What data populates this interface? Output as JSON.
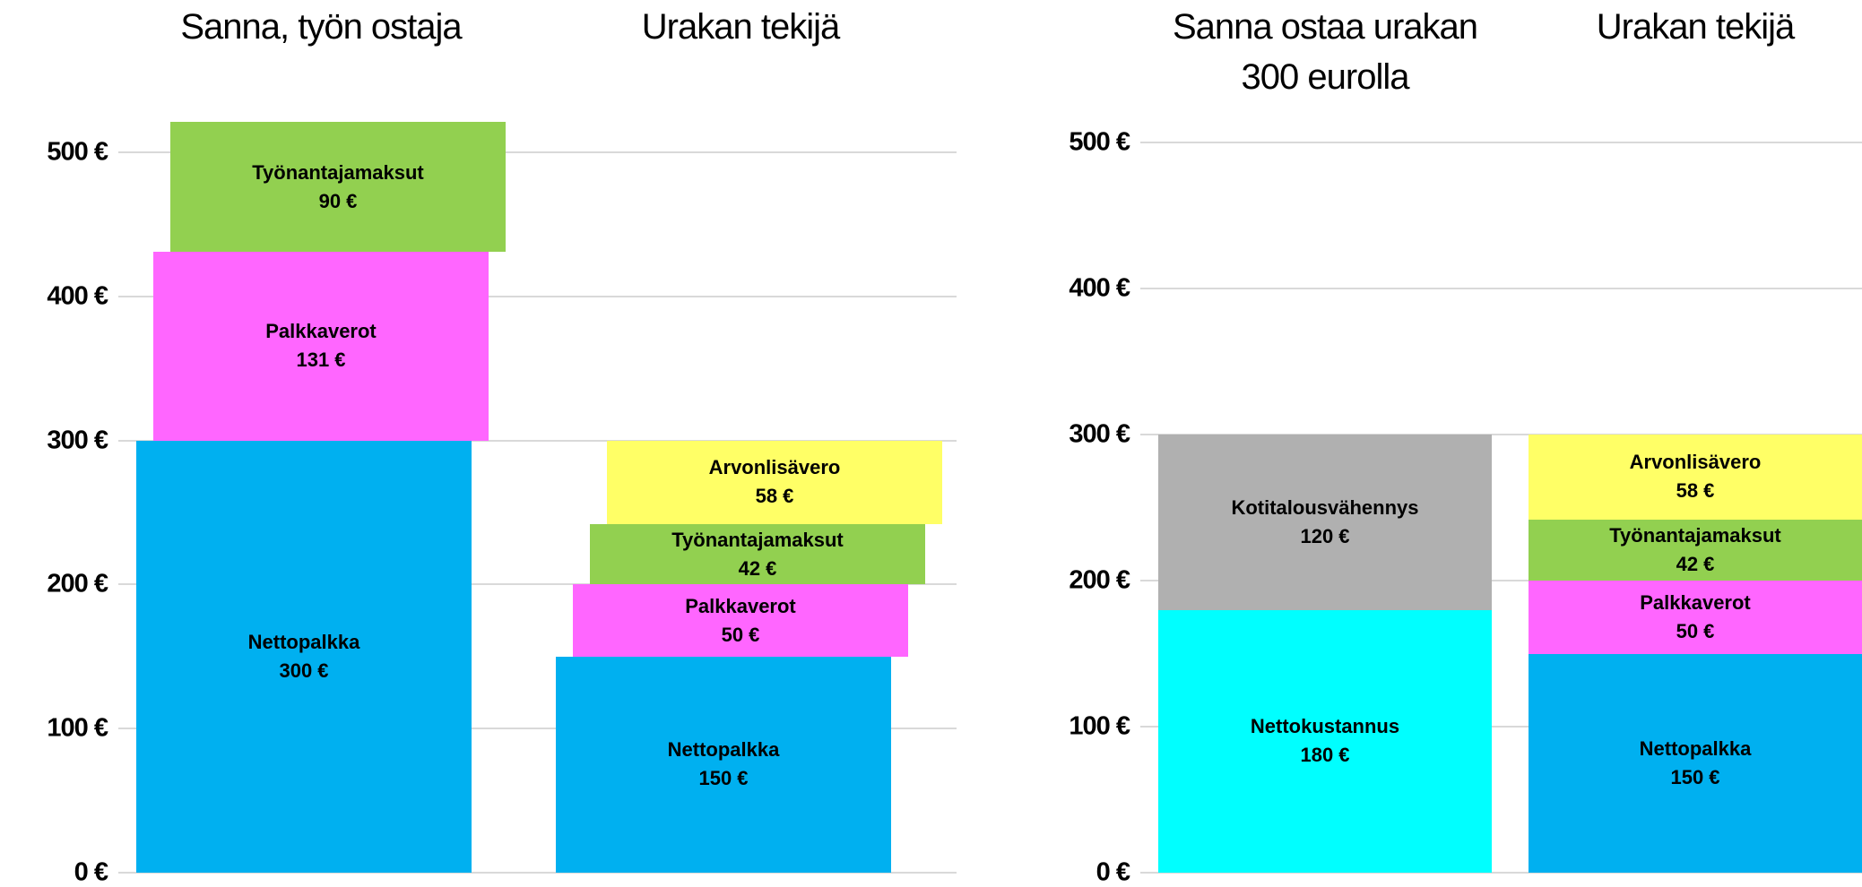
{
  "chart_data": [
    {
      "type": "stacked_bar",
      "categories": [
        "Sanna, työn ostaja",
        "Urakan tekijä"
      ],
      "ylim": [
        0,
        550
      ],
      "yticks": [
        {
          "value": 0,
          "label": "0 €"
        },
        {
          "value": 100,
          "label": "100 €"
        },
        {
          "value": 200,
          "label": "200 €"
        },
        {
          "value": 300,
          "label": "300 €"
        },
        {
          "value": 400,
          "label": "400 €"
        },
        {
          "value": 500,
          "label": "500 €"
        }
      ],
      "grid": true,
      "series": [
        {
          "name": "Nettopalkka",
          "color": "#00b0f0",
          "values": [
            300,
            150
          ],
          "value_labels": [
            "300 €",
            "150 €"
          ]
        },
        {
          "name": "Palkkaverot",
          "color": "#ff66ff",
          "values": [
            131,
            50
          ],
          "value_labels": [
            "131 €",
            "50 €"
          ]
        },
        {
          "name": "Työnantajamaksut",
          "color": "#92d050",
          "values": [
            90,
            42
          ],
          "value_labels": [
            "90 €",
            "42 €"
          ]
        },
        {
          "name": "Arvonlisävero",
          "color": "#ffff66",
          "values": [
            null,
            58
          ],
          "value_labels": [
            null,
            "58 €"
          ]
        }
      ]
    },
    {
      "type": "stacked_bar",
      "categories": [
        "Sanna ostaa urakan 300 eurolla",
        "Urakan tekijä"
      ],
      "ylim": [
        0,
        500
      ],
      "yticks": [
        {
          "value": 0,
          "label": "0 €"
        },
        {
          "value": 100,
          "label": "100 €"
        },
        {
          "value": 200,
          "label": "200 €"
        },
        {
          "value": 300,
          "label": "300 €"
        },
        {
          "value": 400,
          "label": "400 €"
        },
        {
          "value": 500,
          "label": "500 €"
        }
      ],
      "grid": true,
      "series": [
        {
          "name": "Nettokustannus",
          "color": "#00ffff",
          "values": [
            180,
            null
          ],
          "value_labels": [
            "180 €",
            null
          ]
        },
        {
          "name": "Kotitalousvähennys",
          "color": "#b0b0b0",
          "values": [
            120,
            null
          ],
          "value_labels": [
            "120 €",
            null
          ]
        },
        {
          "name": "Nettopalkka",
          "color": "#00b0f0",
          "values": [
            null,
            150
          ],
          "value_labels": [
            null,
            "150 €"
          ]
        },
        {
          "name": "Palkkaverot",
          "color": "#ff66ff",
          "values": [
            null,
            50
          ],
          "value_labels": [
            null,
            "50 €"
          ]
        },
        {
          "name": "Työnantajamaksut",
          "color": "#92d050",
          "values": [
            null,
            42
          ],
          "value_labels": [
            null,
            "42 €"
          ]
        },
        {
          "name": "Arvonlisävero",
          "color": "#ffff66",
          "values": [
            null,
            58
          ],
          "value_labels": [
            null,
            "58 €"
          ]
        }
      ]
    }
  ]
}
